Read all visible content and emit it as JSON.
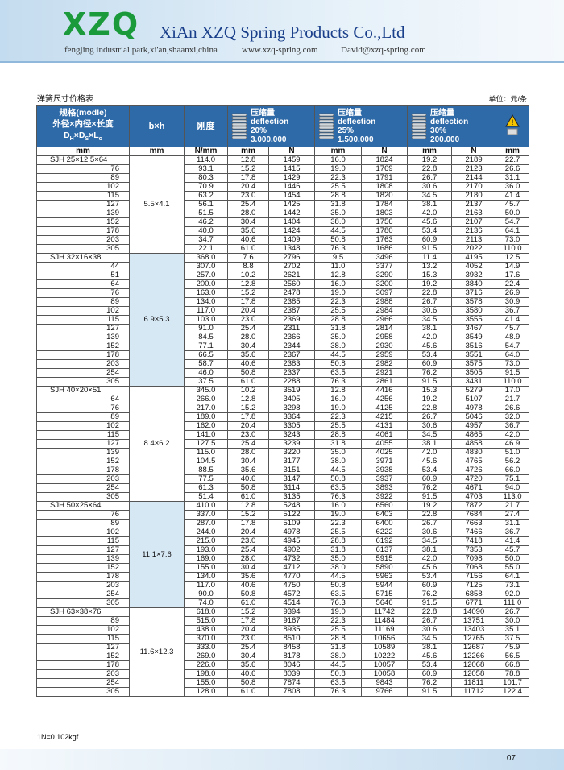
{
  "header": {
    "logo": "XZQ",
    "company": "XiAn XZQ Spring Products Co.,Ltd",
    "address": "fengjing industrial park,xi'an,shaanxi,china",
    "website": "www.xzq-spring.com",
    "email": "David@xzq-spring.com"
  },
  "title": "弹簧尺寸价格表",
  "unit": "单位：元/条",
  "table": {
    "head": {
      "model_lines": [
        "规格(modle)",
        "外径×内径×长度"
      ],
      "formula": [
        [
          "D",
          "H"
        ],
        [
          "×D",
          "S"
        ],
        [
          "×L",
          "o"
        ]
      ],
      "bxh": "b×h",
      "stiffness": "刚度",
      "groups": [
        {
          "label": "压缩量",
          "sub": "deflection",
          "pct": "20%",
          "cycles": "3.000.000"
        },
        {
          "label": "压缩量",
          "sub": "deflection",
          "pct": "25%",
          "cycles": "1.500.000"
        },
        {
          "label": "压缩量",
          "sub": "deflection",
          "pct": "30%",
          "cycles": "200.000"
        }
      ],
      "units": [
        "mm",
        "mm",
        "N/mm",
        "mm",
        "N",
        "mm",
        "N",
        "mm",
        "N",
        "mm"
      ]
    },
    "groups": [
      {
        "bxh": "5.5×4.1",
        "rows": [
          [
            "SJH 25×12.5×64",
            "114.0",
            "12.8",
            "1459",
            "16.0",
            "1824",
            "19.2",
            "2189",
            "22.7"
          ],
          [
            "76",
            "93.1",
            "15.2",
            "1415",
            "19.0",
            "1769",
            "22.8",
            "2123",
            "26.6"
          ],
          [
            "89",
            "80.3",
            "17.8",
            "1429",
            "22.3",
            "1791",
            "26.7",
            "2144",
            "31.1"
          ],
          [
            "102",
            "70.9",
            "20.4",
            "1446",
            "25.5",
            "1808",
            "30.6",
            "2170",
            "36.0"
          ],
          [
            "115",
            "63.2",
            "23.0",
            "1454",
            "28.8",
            "1820",
            "34.5",
            "2180",
            "41.4"
          ],
          [
            "127",
            "56.1",
            "25.4",
            "1425",
            "31.8",
            "1784",
            "38.1",
            "2137",
            "45.7"
          ],
          [
            "139",
            "51.5",
            "28.0",
            "1442",
            "35.0",
            "1803",
            "42.0",
            "2163",
            "50.0"
          ],
          [
            "152",
            "46.2",
            "30.4",
            "1404",
            "38.0",
            "1756",
            "45.6",
            "2107",
            "54.7"
          ],
          [
            "178",
            "40.0",
            "35.6",
            "1424",
            "44.5",
            "1780",
            "53.4",
            "2136",
            "64.1"
          ],
          [
            "203",
            "34.7",
            "40.6",
            "1409",
            "50.8",
            "1763",
            "60.9",
            "2113",
            "73.0"
          ],
          [
            "305",
            "22.1",
            "61.0",
            "1348",
            "76.3",
            "1686",
            "91.5",
            "2022",
            "110.0"
          ]
        ]
      },
      {
        "bxh": "6.9×5.3",
        "rows": [
          [
            "SJH 32×16×38",
            "368.0",
            "7.6",
            "2796",
            "9.5",
            "3496",
            "11.4",
            "4195",
            "12.5"
          ],
          [
            "44",
            "307.0",
            "8.8",
            "2702",
            "11.0",
            "3377",
            "13.2",
            "4052",
            "14.9"
          ],
          [
            "51",
            "257.0",
            "10.2",
            "2621",
            "12.8",
            "3290",
            "15.3",
            "3932",
            "17.6"
          ],
          [
            "64",
            "200.0",
            "12.8",
            "2560",
            "16.0",
            "3200",
            "19.2",
            "3840",
            "22.4"
          ],
          [
            "76",
            "163.0",
            "15.2",
            "2478",
            "19.0",
            "3097",
            "22.8",
            "3716",
            "26.9"
          ],
          [
            "89",
            "134.0",
            "17.8",
            "2385",
            "22.3",
            "2988",
            "26.7",
            "3578",
            "30.9"
          ],
          [
            "102",
            "117.0",
            "20.4",
            "2387",
            "25.5",
            "2984",
            "30.6",
            "3580",
            "36.7"
          ],
          [
            "115",
            "103.0",
            "23.0",
            "2369",
            "28.8",
            "2966",
            "34.5",
            "3555",
            "41.4"
          ],
          [
            "127",
            "91.0",
            "25.4",
            "2311",
            "31.8",
            "2814",
            "38.1",
            "3467",
            "45.7"
          ],
          [
            "139",
            "84.5",
            "28.0",
            "2366",
            "35.0",
            "2958",
            "42.0",
            "3549",
            "48.9"
          ],
          [
            "152",
            "77.1",
            "30.4",
            "2344",
            "38.0",
            "2930",
            "45.6",
            "3516",
            "54.7"
          ],
          [
            "178",
            "66.5",
            "35.6",
            "2367",
            "44.5",
            "2959",
            "53.4",
            "3551",
            "64.0"
          ],
          [
            "203",
            "58.7",
            "40.6",
            "2383",
            "50.8",
            "2982",
            "60.9",
            "3575",
            "73.0"
          ],
          [
            "254",
            "46.0",
            "50.8",
            "2337",
            "63.5",
            "2921",
            "76.2",
            "3505",
            "91.5"
          ],
          [
            "305",
            "37.5",
            "61.0",
            "2288",
            "76.3",
            "2861",
            "91.5",
            "3431",
            "110.0"
          ]
        ]
      },
      {
        "bxh": "8.4×6.2",
        "rows": [
          [
            "SJH 40×20×51",
            "345.0",
            "10.2",
            "3519",
            "12.8",
            "4416",
            "15.3",
            "5279",
            "17.0"
          ],
          [
            "64",
            "266.0",
            "12.8",
            "3405",
            "16.0",
            "4256",
            "19.2",
            "5107",
            "21.7"
          ],
          [
            "76",
            "217.0",
            "15.2",
            "3298",
            "19.0",
            "4125",
            "22.8",
            "4978",
            "26.6"
          ],
          [
            "89",
            "189.0",
            "17.8",
            "3364",
            "22.3",
            "4215",
            "26.7",
            "5046",
            "32.0"
          ],
          [
            "102",
            "162.0",
            "20.4",
            "3305",
            "25.5",
            "4131",
            "30.6",
            "4957",
            "36.7"
          ],
          [
            "115",
            "141.0",
            "23.0",
            "3243",
            "28.8",
            "4061",
            "34.5",
            "4865",
            "42.0"
          ],
          [
            "127",
            "127.5",
            "25.4",
            "3239",
            "31.8",
            "4055",
            "38.1",
            "4858",
            "46.9"
          ],
          [
            "139",
            "115.0",
            "28.0",
            "3220",
            "35.0",
            "4025",
            "42.0",
            "4830",
            "51.0"
          ],
          [
            "152",
            "104.5",
            "30.4",
            "3177",
            "38.0",
            "3971",
            "45.6",
            "4765",
            "56.2"
          ],
          [
            "178",
            "88.5",
            "35.6",
            "3151",
            "44.5",
            "3938",
            "53.4",
            "4726",
            "66.0"
          ],
          [
            "203",
            "77.5",
            "40.6",
            "3147",
            "50.8",
            "3937",
            "60.9",
            "4720",
            "75.1"
          ],
          [
            "254",
            "61.3",
            "50.8",
            "3114",
            "63.5",
            "3893",
            "76.2",
            "4671",
            "94.0"
          ],
          [
            "305",
            "51.4",
            "61.0",
            "3135",
            "76.3",
            "3922",
            "91.5",
            "4703",
            "113.0"
          ]
        ]
      },
      {
        "bxh": "11.1×7.6",
        "rows": [
          [
            "SJH 50×25×64",
            "410.0",
            "12.8",
            "5248",
            "16.0",
            "6560",
            "19.2",
            "7872",
            "21.7"
          ],
          [
            "76",
            "337.0",
            "15.2",
            "5122",
            "19.0",
            "6403",
            "22.8",
            "7684",
            "27.4"
          ],
          [
            "89",
            "287.0",
            "17.8",
            "5109",
            "22.3",
            "6400",
            "26.7",
            "7663",
            "31.1"
          ],
          [
            "102",
            "244.0",
            "20.4",
            "4978",
            "25.5",
            "6222",
            "30.6",
            "7466",
            "36.7"
          ],
          [
            "115",
            "215.0",
            "23.0",
            "4945",
            "28.8",
            "6192",
            "34.5",
            "7418",
            "41.4"
          ],
          [
            "127",
            "193.0",
            "25.4",
            "4902",
            "31.8",
            "6137",
            "38.1",
            "7353",
            "45.7"
          ],
          [
            "139",
            "169.0",
            "28.0",
            "4732",
            "35.0",
            "5915",
            "42.0",
            "7098",
            "50.0"
          ],
          [
            "152",
            "155.0",
            "30.4",
            "4712",
            "38.0",
            "5890",
            "45.6",
            "7068",
            "55.0"
          ],
          [
            "178",
            "134.0",
            "35.6",
            "4770",
            "44.5",
            "5963",
            "53.4",
            "7156",
            "64.1"
          ],
          [
            "203",
            "117.0",
            "40.6",
            "4750",
            "50.8",
            "5944",
            "60.9",
            "7125",
            "73.1"
          ],
          [
            "254",
            "90.0",
            "50.8",
            "4572",
            "63.5",
            "5715",
            "76.2",
            "6858",
            "92.0"
          ],
          [
            "305",
            "74.0",
            "61.0",
            "4514",
            "76.3",
            "5646",
            "91.5",
            "6771",
            "111.0"
          ]
        ]
      },
      {
        "bxh": "11.6×12.3",
        "rows": [
          [
            "SJH 63×38×76",
            "618.0",
            "15.2",
            "9394",
            "19.0",
            "11742",
            "22.8",
            "14090",
            "26.7"
          ],
          [
            "89",
            "515.0",
            "17.8",
            "9167",
            "22.3",
            "11484",
            "26.7",
            "13751",
            "30.0"
          ],
          [
            "102",
            "438.0",
            "20.4",
            "8935",
            "25.5",
            "11169",
            "30.6",
            "13403",
            "35.1"
          ],
          [
            "115",
            "370.0",
            "23.0",
            "8510",
            "28.8",
            "10656",
            "34.5",
            "12765",
            "37.5"
          ],
          [
            "127",
            "333.0",
            "25.4",
            "8458",
            "31.8",
            "10589",
            "38.1",
            "12687",
            "45.9"
          ],
          [
            "152",
            "269.0",
            "30.4",
            "8178",
            "38.0",
            "10222",
            "45.6",
            "12266",
            "56.5"
          ],
          [
            "178",
            "226.0",
            "35.6",
            "8046",
            "44.5",
            "10057",
            "53.4",
            "12068",
            "66.8"
          ],
          [
            "203",
            "198.0",
            "40.6",
            "8039",
            "50.8",
            "10058",
            "60.9",
            "12058",
            "78.8"
          ],
          [
            "254",
            "155.0",
            "50.8",
            "7874",
            "63.5",
            "9843",
            "76.2",
            "11811",
            "101.7"
          ],
          [
            "305",
            "128.0",
            "61.0",
            "7808",
            "76.3",
            "9766",
            "91.5",
            "11712",
            "122.4"
          ]
        ]
      }
    ]
  },
  "footnote": "1N=0.102kgf",
  "page_number": "07"
}
